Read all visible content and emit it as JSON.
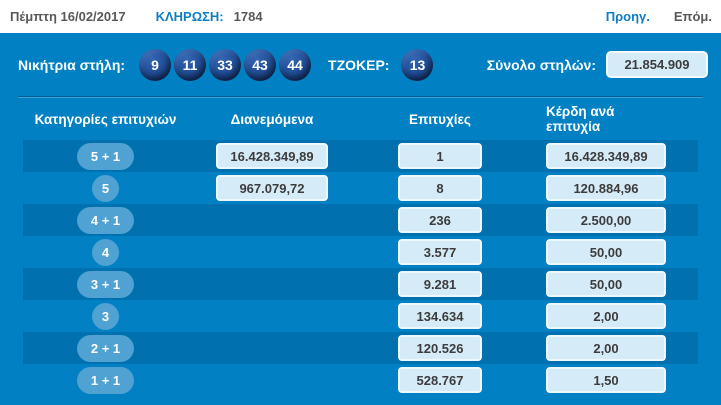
{
  "top_bar": {
    "date": "Πέμπτη 16/02/2017",
    "draw_label": "ΚΛΗΡΩΣΗ:",
    "draw_number": "1784",
    "prev_label": "Προηγ.",
    "next_label": "Επόμ."
  },
  "numbers_row": {
    "winning_label": "Νικήτρια στήλη:",
    "numbers": [
      "9",
      "11",
      "33",
      "43",
      "44"
    ],
    "joker_label": "ΤΖΟΚΕΡ:",
    "joker": "13",
    "total_label": "Σύνολο στηλών:",
    "total_value": "21.854.909"
  },
  "table": {
    "headers": {
      "category": "Κατηγορίες επιτυχιών",
      "distributed": "Διανεμόμενα",
      "hits": "Επιτυχίες",
      "win_per_hit": "Κέρδη ανά επιτυχία"
    },
    "rows": [
      {
        "category": "5 + 1",
        "distributed": "16.428.349,89",
        "hits": "1",
        "win_per_hit": "16.428.349,89"
      },
      {
        "category": "5",
        "distributed": "967.079,72",
        "hits": "8",
        "win_per_hit": "120.884,96"
      },
      {
        "category": "4 + 1",
        "distributed": "",
        "hits": "236",
        "win_per_hit": "2.500,00"
      },
      {
        "category": "4",
        "distributed": "",
        "hits": "3.577",
        "win_per_hit": "50,00"
      },
      {
        "category": "3 + 1",
        "distributed": "",
        "hits": "9.281",
        "win_per_hit": "50,00"
      },
      {
        "category": "3",
        "distributed": "",
        "hits": "134.634",
        "win_per_hit": "2,00"
      },
      {
        "category": "2 + 1",
        "distributed": "",
        "hits": "120.526",
        "win_per_hit": "2,00"
      },
      {
        "category": "1 + 1",
        "distributed": "",
        "hits": "528.767",
        "win_per_hit": "1,50"
      }
    ]
  },
  "colors": {
    "panel_blue": "#0181c3",
    "dark_row_blue": "#0070ae",
    "pill_blue": "#4fa2d2",
    "ball_navy": "#16336b",
    "box_light_blue": "#d5ebf7",
    "link_blue": "#0e7ec2",
    "text_gray": "#58595b"
  }
}
